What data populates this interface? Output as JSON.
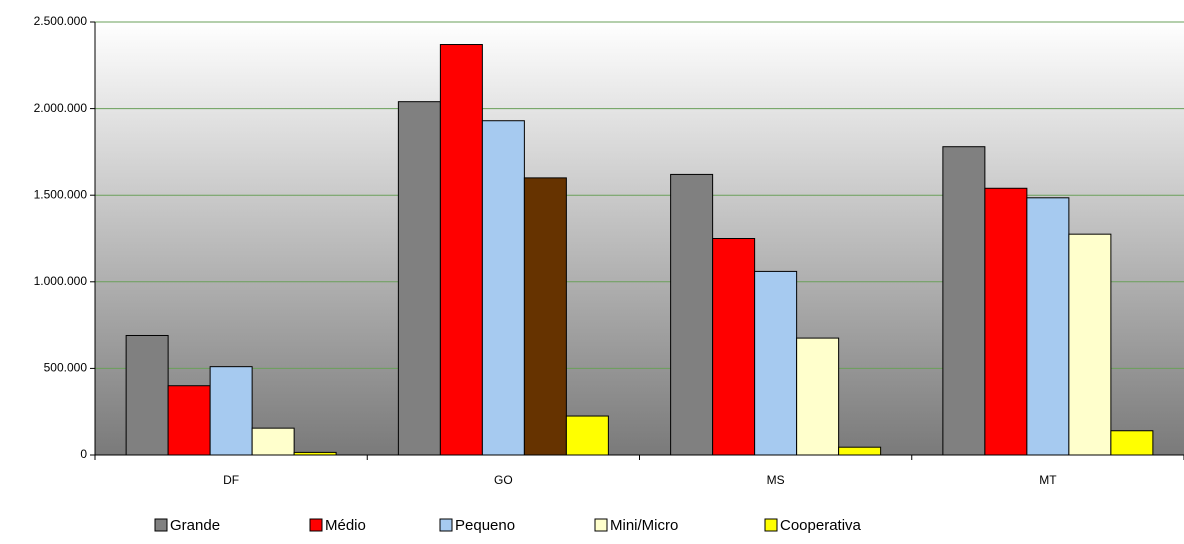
{
  "chart_data": {
    "type": "bar",
    "categories": [
      "DF",
      "GO",
      "MS",
      "MT"
    ],
    "series": [
      {
        "name": "Grande",
        "color": "#808080",
        "values": [
          690000,
          2040000,
          1620000,
          1780000
        ]
      },
      {
        "name": "Médio",
        "color": "#ff0000",
        "values": [
          400000,
          2370000,
          1250000,
          1540000
        ]
      },
      {
        "name": "Pequeno",
        "color": "#a6caf0",
        "values": [
          510000,
          1930000,
          1060000,
          1485000
        ]
      },
      {
        "name": "Mini/Micro",
        "color": "#ffffcc",
        "values": [
          155000,
          1600000,
          675000,
          1275000
        ],
        "colors": [
          "#ffffcc",
          "#663300",
          "#ffffcc",
          "#ffffcc"
        ]
      },
      {
        "name": "Cooperativa",
        "color": "#ffff00",
        "values": [
          15000,
          225000,
          45000,
          140000
        ]
      }
    ],
    "ylim": [
      0,
      2500000
    ],
    "yticks": [
      {
        "value": 0,
        "label": "0"
      },
      {
        "value": 500000,
        "label": "500.000"
      },
      {
        "value": 1000000,
        "label": "1.000.000"
      },
      {
        "value": 1500000,
        "label": "1.500.000"
      },
      {
        "value": 2000000,
        "label": "2.000.000"
      },
      {
        "value": 2500000,
        "label": "2.500.000"
      }
    ],
    "grid": true,
    "legend": "bottom"
  }
}
